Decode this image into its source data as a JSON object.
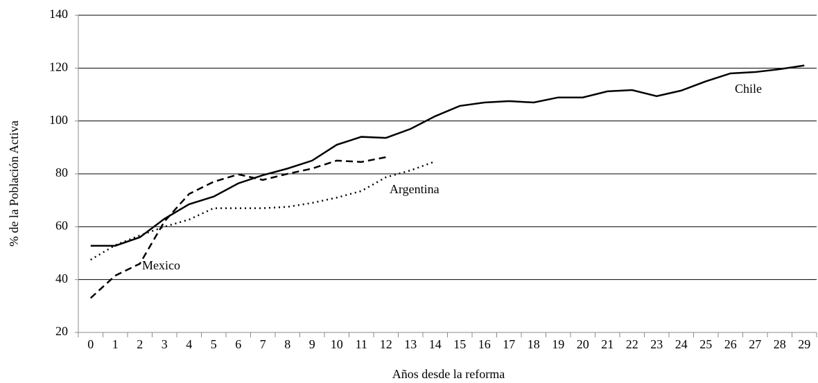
{
  "chart_data": {
    "type": "line",
    "xlabel": "Años desde la reforma",
    "ylabel": "% de la Población Activa",
    "categories": [
      0,
      1,
      2,
      3,
      4,
      5,
      6,
      7,
      8,
      9,
      10,
      11,
      12,
      13,
      14,
      15,
      16,
      17,
      18,
      19,
      20,
      21,
      22,
      23,
      24,
      25,
      26,
      27,
      28,
      29
    ],
    "series": [
      {
        "name": "Chile",
        "color": "#000000",
        "style": "solid",
        "values": [
          52.8,
          52.8,
          56,
          63,
          68.5,
          71.4,
          76.4,
          79.5,
          82,
          85,
          91,
          94,
          93.6,
          97,
          101.8,
          105.7,
          107,
          107.5,
          107,
          108.9,
          108.9,
          111.2,
          111.7,
          109.4,
          111.5,
          115,
          118,
          118.5,
          119.6,
          121
        ]
      },
      {
        "name": "Mexico",
        "color": "#000000",
        "style": "dashed",
        "values": [
          33,
          41.5,
          46,
          62,
          72.4,
          77,
          79.8,
          77.7,
          80,
          82,
          85,
          84.5,
          86.3,
          null,
          null,
          null,
          null,
          null,
          null,
          null,
          null,
          null,
          null,
          null,
          null,
          null,
          null,
          null,
          null,
          null
        ]
      },
      {
        "name": "Argentina",
        "color": "#000000",
        "style": "dotted",
        "values": [
          47.5,
          53,
          56.7,
          60,
          62.7,
          67,
          67,
          67,
          67.5,
          69,
          71,
          73.5,
          78.7,
          81.3,
          84.7,
          null,
          null,
          null,
          null,
          null,
          null,
          null,
          null,
          null,
          null,
          null,
          null,
          null,
          null,
          null
        ]
      }
    ],
    "ylim": [
      20,
      140
    ],
    "yticks": [
      20,
      40,
      60,
      80,
      100,
      120,
      140
    ],
    "grid": true
  }
}
